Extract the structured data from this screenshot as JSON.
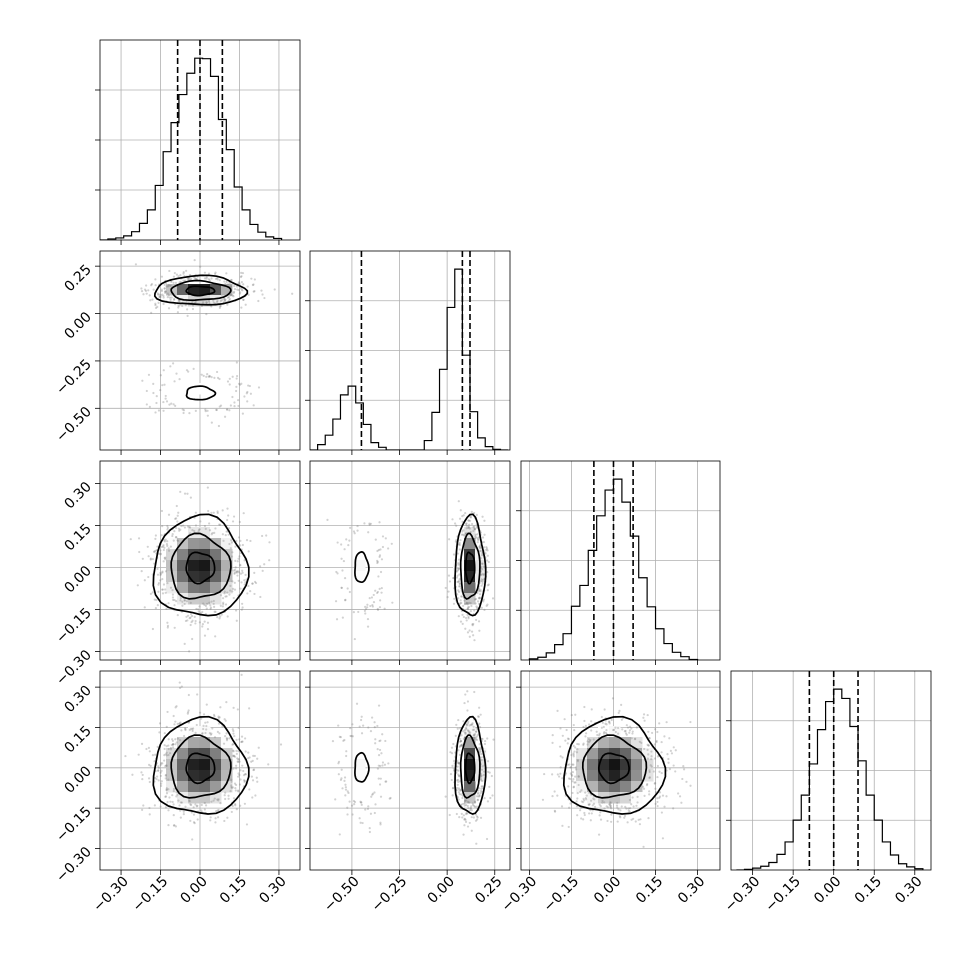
{
  "chart_data": {
    "type": "corner",
    "grid": true,
    "parameters": [
      {
        "index": 0,
        "range": [
          -0.38,
          0.38
        ],
        "ticks": [
          -0.3,
          -0.15,
          0.0,
          0.15,
          0.3
        ],
        "tick_labels": [
          "−0.30",
          "−0.15",
          "0.00",
          "0.15",
          "0.30"
        ]
      },
      {
        "index": 1,
        "range": [
          -0.72,
          0.33
        ],
        "ticks": [
          -0.5,
          -0.25,
          0.0,
          0.25
        ],
        "tick_labels": [
          "−0.50",
          "−0.25",
          "0.00",
          "0.25"
        ]
      },
      {
        "index": 2,
        "range": [
          -0.33,
          0.38
        ],
        "ticks": [
          -0.3,
          -0.15,
          0.0,
          0.15,
          0.3
        ],
        "tick_labels": [
          "−0.30",
          "−0.15",
          "0.00",
          "0.15",
          "0.30"
        ]
      },
      {
        "index": 3,
        "range": [
          -0.38,
          0.36
        ],
        "ticks": [
          -0.3,
          -0.15,
          0.0,
          0.15,
          0.3
        ],
        "tick_labels": [
          "−0.30",
          "−0.15",
          "0.00",
          "0.15",
          "0.30"
        ]
      }
    ],
    "histograms": [
      {
        "param": 0,
        "quantiles": [
          -0.085,
          0.0,
          0.085
        ],
        "edges": [
          -0.38,
          -0.35,
          -0.32,
          -0.29,
          -0.26,
          -0.23,
          -0.2,
          -0.17,
          -0.14,
          -0.11,
          -0.08,
          -0.05,
          -0.02,
          0.01,
          0.04,
          0.07,
          0.1,
          0.13,
          0.16,
          0.19,
          0.22,
          0.25,
          0.28,
          0.31
        ],
        "counts": [
          0,
          2,
          4,
          8,
          16,
          32,
          58,
          105,
          170,
          226,
          280,
          321,
          350,
          349,
          315,
          232,
          174,
          102,
          58,
          30,
          15,
          6,
          3
        ]
      },
      {
        "param": 1,
        "quantiles": [
          -0.45,
          0.08,
          0.12
        ],
        "edges": [
          -0.72,
          -0.68,
          -0.64,
          -0.6,
          -0.56,
          -0.52,
          -0.48,
          -0.44,
          -0.4,
          -0.36,
          -0.32,
          -0.28,
          -0.24,
          -0.2,
          -0.16,
          -0.12,
          -0.08,
          -0.04,
          0.0,
          0.04,
          0.08,
          0.12,
          0.16,
          0.2,
          0.24,
          0.28,
          0.32
        ],
        "counts": [
          0,
          8,
          22,
          46,
          82,
          95,
          70,
          38,
          11,
          4,
          0,
          0,
          0,
          0,
          0,
          14,
          56,
          120,
          212,
          269,
          141,
          57,
          18,
          5,
          1,
          0
        ]
      },
      {
        "param": 2,
        "quantiles": [
          -0.07,
          0.0,
          0.07
        ],
        "edges": [
          -0.3,
          -0.27,
          -0.24,
          -0.21,
          -0.18,
          -0.15,
          -0.12,
          -0.09,
          -0.06,
          -0.03,
          0.0,
          0.03,
          0.06,
          0.09,
          0.12,
          0.15,
          0.18,
          0.21,
          0.24,
          0.27,
          0.3
        ],
        "counts": [
          2,
          5,
          13,
          28,
          48,
          98,
          136,
          200,
          263,
          310,
          330,
          288,
          226,
          150,
          97,
          57,
          30,
          14,
          6,
          1
        ]
      },
      {
        "param": 3,
        "quantiles": [
          -0.09,
          0.0,
          0.09
        ],
        "edges": [
          -0.36,
          -0.33,
          -0.3,
          -0.27,
          -0.24,
          -0.21,
          -0.18,
          -0.15,
          -0.12,
          -0.09,
          -0.06,
          -0.03,
          0.0,
          0.03,
          0.06,
          0.09,
          0.12,
          0.15,
          0.18,
          0.21,
          0.24,
          0.27,
          0.3,
          0.33
        ],
        "counts": [
          0,
          1,
          3,
          6,
          12,
          25,
          45,
          80,
          120,
          170,
          225,
          270,
          290,
          275,
          230,
          175,
          120,
          80,
          45,
          24,
          10,
          5,
          2
        ]
      }
    ],
    "pairs": [
      {
        "x": 0,
        "y": 1,
        "clusters": [
          {
            "mean": [
              0.0,
              0.12
            ],
            "sigma": [
              0.09,
              0.04
            ],
            "weight": 0.75,
            "density": [
              3.2,
              2.1,
              1.0
            ]
          },
          {
            "mean": [
              0.0,
              -0.42
            ],
            "sigma": [
              0.09,
              0.06
            ],
            "weight": 0.25,
            "density": [
              1.0
            ]
          }
        ]
      },
      {
        "x": 0,
        "y": 2,
        "clusters": [
          {
            "mean": [
              0.0,
              0.0
            ],
            "sigma": [
              0.09,
              0.09
            ],
            "weight": 1.0,
            "density": [
              3.3,
              2.1,
              1.0
            ]
          }
        ]
      },
      {
        "x": 1,
        "y": 2,
        "clusters": [
          {
            "mean": [
              0.12,
              0.0
            ],
            "sigma": [
              0.04,
              0.09
            ],
            "weight": 0.75,
            "density": [
              3.3,
              2.1,
              1.0
            ]
          },
          {
            "mean": [
              -0.45,
              0.0
            ],
            "sigma": [
              0.06,
              0.09
            ],
            "weight": 0.25,
            "density": [
              1.0
            ]
          }
        ]
      },
      {
        "x": 0,
        "y": 3,
        "clusters": [
          {
            "mean": [
              0.0,
              0.0
            ],
            "sigma": [
              0.09,
              0.09
            ],
            "weight": 1.0,
            "density": [
              3.3,
              2.1,
              1.0
            ]
          }
        ]
      },
      {
        "x": 1,
        "y": 3,
        "clusters": [
          {
            "mean": [
              0.12,
              0.0
            ],
            "sigma": [
              0.04,
              0.09
            ],
            "weight": 0.75,
            "density": [
              3.3,
              2.1,
              1.0
            ]
          },
          {
            "mean": [
              -0.45,
              0.0
            ],
            "sigma": [
              0.06,
              0.09
            ],
            "weight": 0.25,
            "density": [
              1.0
            ]
          }
        ]
      },
      {
        "x": 2,
        "y": 3,
        "clusters": [
          {
            "mean": [
              0.0,
              0.0
            ],
            "sigma": [
              0.09,
              0.09
            ],
            "weight": 1.0,
            "density": [
              3.3,
              2.1,
              1.0
            ]
          }
        ]
      }
    ],
    "colors": {
      "line": "#000000",
      "scatter": "#7f7f7f",
      "density_max": "#000000",
      "density_min": "#ffffff",
      "grid": "#b0b0b0"
    }
  }
}
